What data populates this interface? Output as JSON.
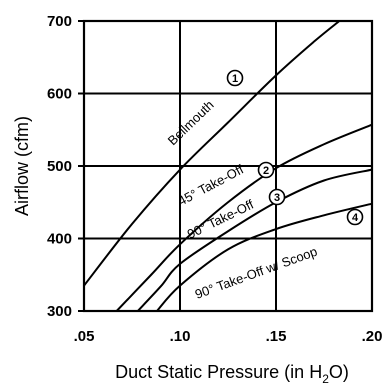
{
  "chart_data": {
    "type": "line",
    "title": "",
    "xlabel": "Duct Static Pressure (in H",
    "xlabel_subscript": "2",
    "xlabel_suffix": "O)",
    "ylabel": "Airflow (cfm)",
    "xlim": [
      0.05,
      0.2
    ],
    "ylim": [
      300,
      700
    ],
    "x_ticks": [
      0.05,
      0.1,
      0.15,
      0.2
    ],
    "x_tick_labels": [
      ".05",
      ".10",
      ".15",
      ".20"
    ],
    "y_ticks": [
      300,
      400,
      500,
      600,
      700
    ],
    "y_tick_labels": [
      "300",
      "400",
      "500",
      "600",
      "700"
    ],
    "grid": true,
    "legend": "none",
    "series": [
      {
        "name": "Bellmouth",
        "badge": "1",
        "x": [
          0.05,
          0.075,
          0.1,
          0.125,
          0.15,
          0.17,
          0.183
        ],
        "y": [
          335,
          420,
          495,
          560,
          625,
          672,
          700
        ]
      },
      {
        "name": "45° Take-Off",
        "badge": "2",
        "x": [
          0.067,
          0.085,
          0.1,
          0.125,
          0.15,
          0.175,
          0.2
        ],
        "y": [
          300,
          350,
          392,
          450,
          497,
          530,
          557
        ]
      },
      {
        "name": "90° Take-Off",
        "badge": "3",
        "x": [
          0.078,
          0.09,
          0.1,
          0.125,
          0.15,
          0.175,
          0.2
        ],
        "y": [
          300,
          334,
          365,
          410,
          450,
          480,
          495
        ]
      },
      {
        "name": "90° Take-Off w/ Scoop",
        "badge": "4",
        "x": [
          0.088,
          0.1,
          0.125,
          0.15,
          0.175,
          0.2
        ],
        "y": [
          300,
          335,
          385,
          413,
          432,
          448
        ]
      }
    ]
  }
}
